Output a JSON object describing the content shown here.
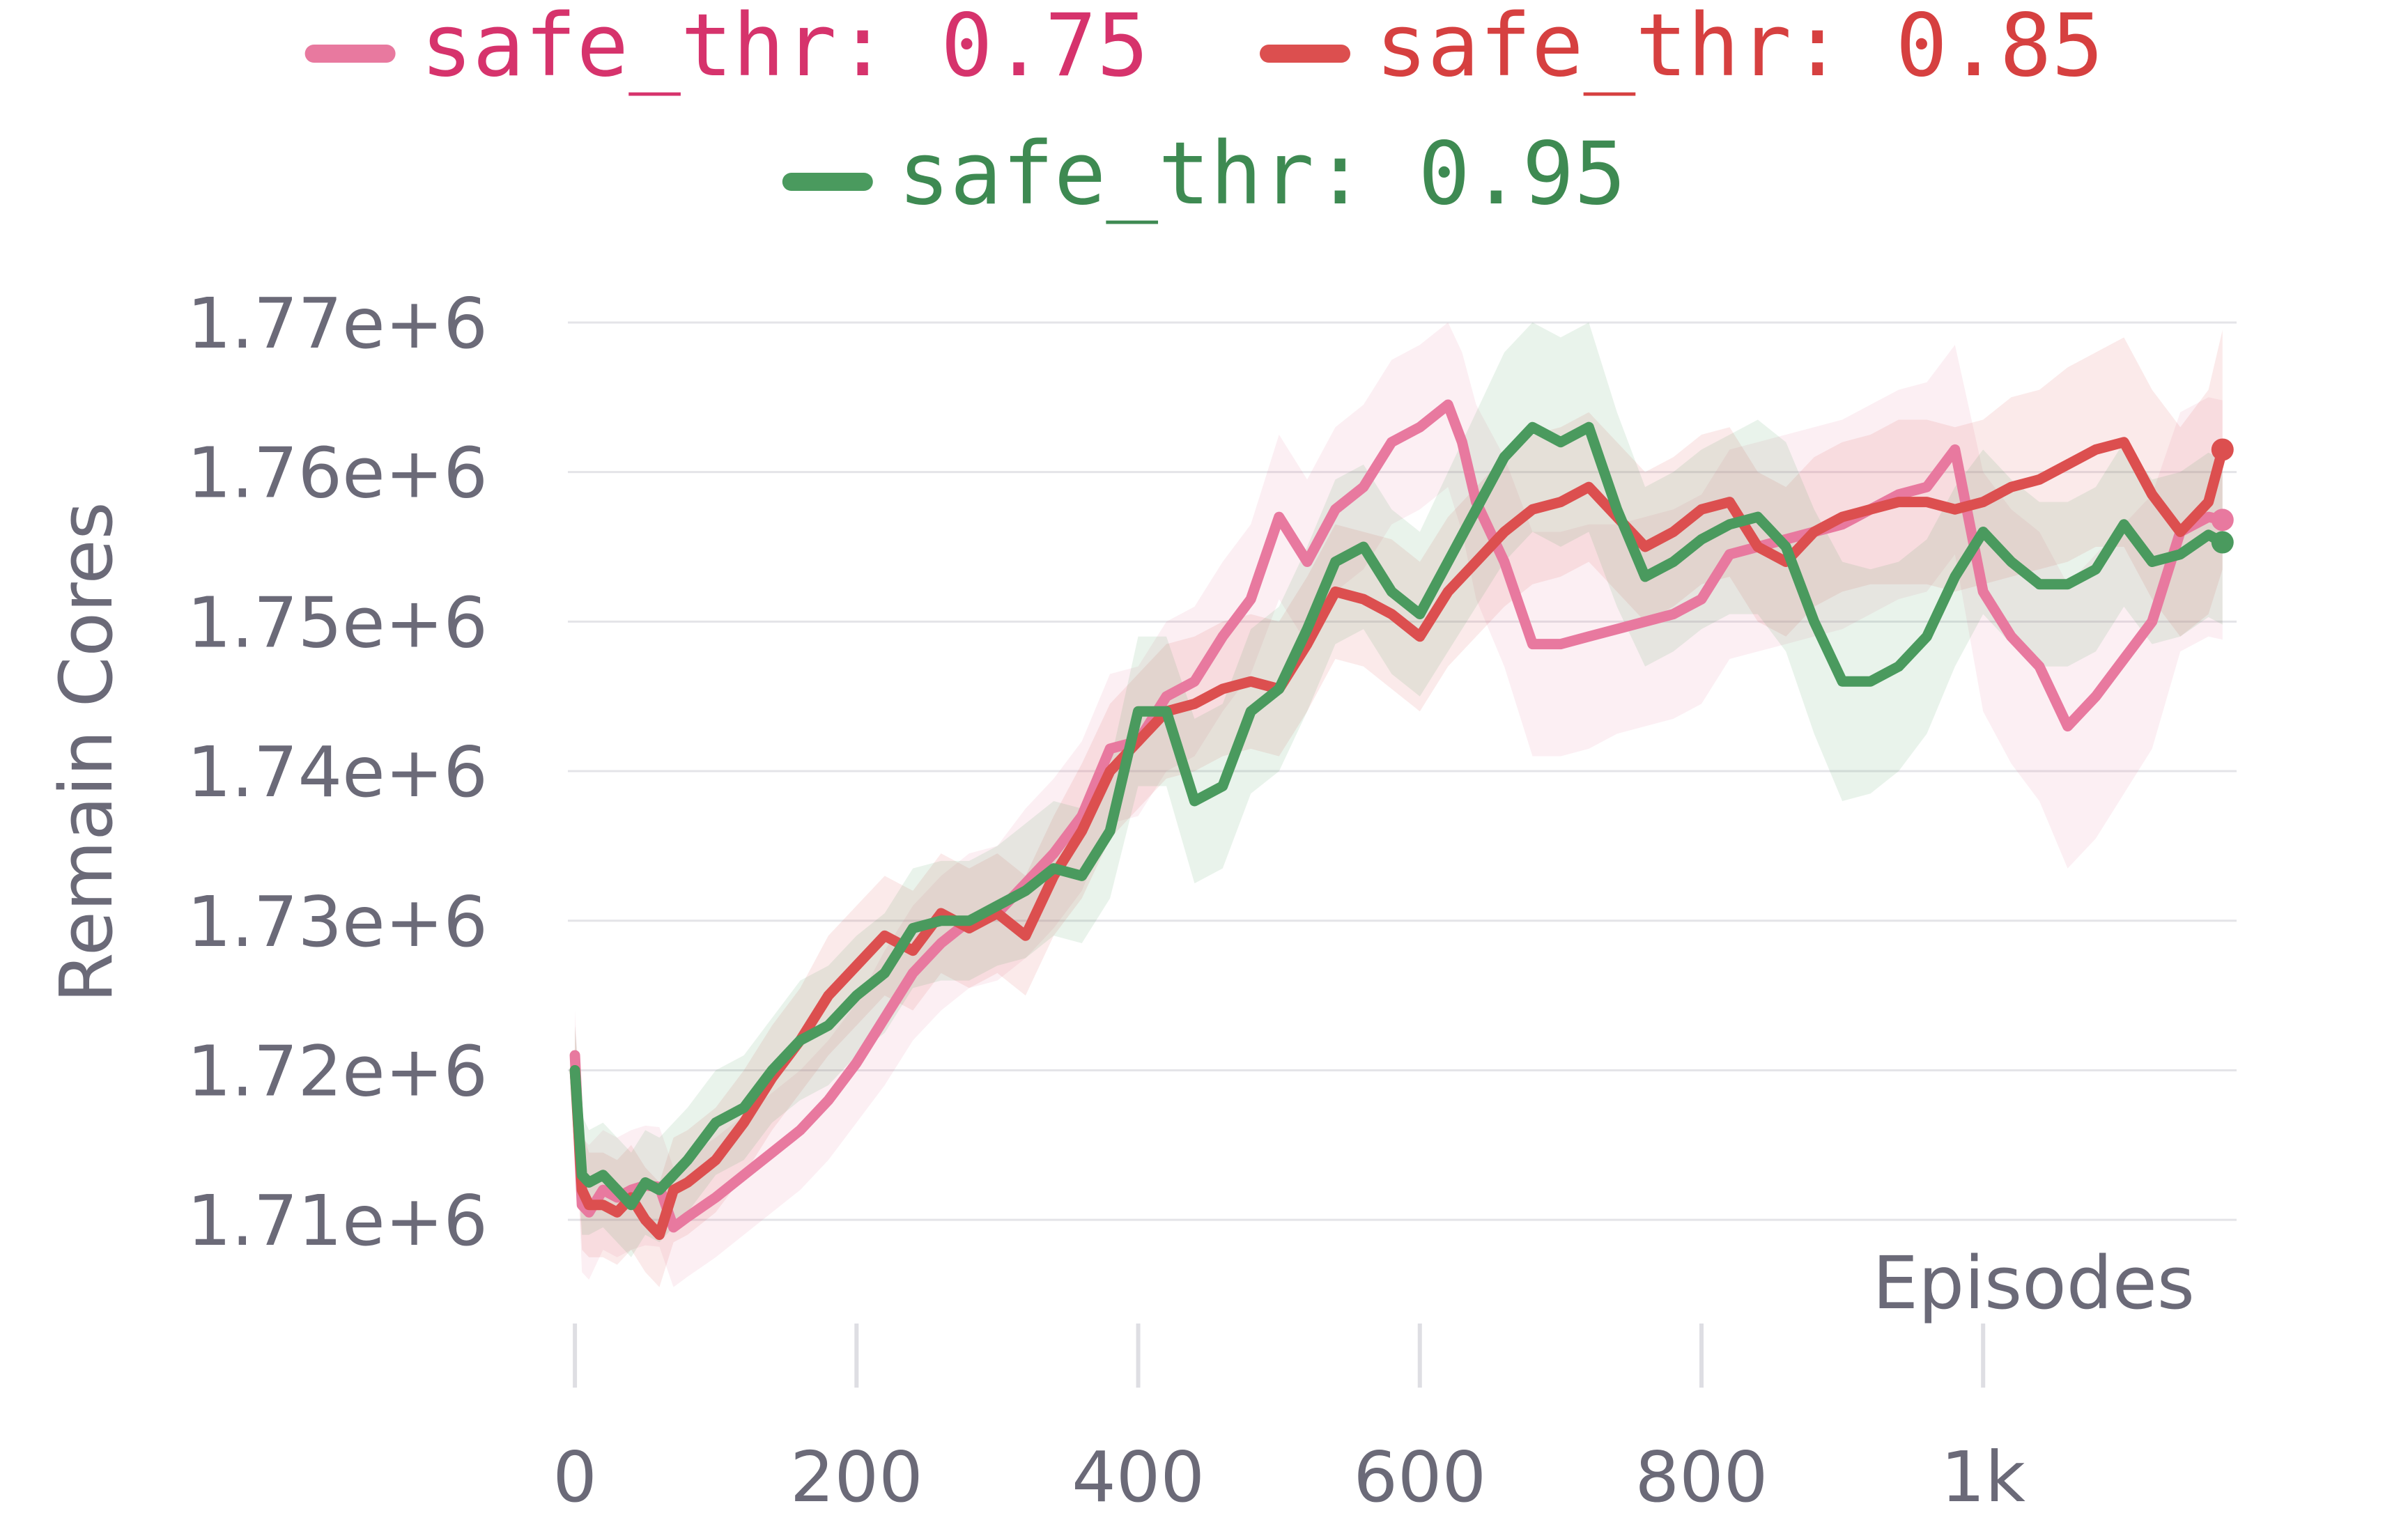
{
  "chart_data": {
    "type": "line",
    "xlabel": "Episodes",
    "ylabel": "Remain Cores",
    "xlim": [
      -5,
      1180
    ],
    "ylim": [
      1704000,
      1772000
    ],
    "x_ticks": [
      {
        "value": 0,
        "label": "0"
      },
      {
        "value": 200,
        "label": "200"
      },
      {
        "value": 400,
        "label": "400"
      },
      {
        "value": 600,
        "label": "600"
      },
      {
        "value": 800,
        "label": "800"
      },
      {
        "value": 1000,
        "label": "1k"
      }
    ],
    "y_ticks": [
      {
        "value": 1710000,
        "label": "1.71e+6"
      },
      {
        "value": 1720000,
        "label": "1.72e+6"
      },
      {
        "value": 1730000,
        "label": "1.73e+6"
      },
      {
        "value": 1740000,
        "label": "1.74e+6"
      },
      {
        "value": 1750000,
        "label": "1.75e+6"
      },
      {
        "value": 1760000,
        "label": "1.76e+6"
      },
      {
        "value": 1770000,
        "label": "1.77e+6"
      }
    ],
    "grid": true,
    "legend_position": "top",
    "series": [
      {
        "name": "safe_thr: 0.75",
        "color": "#e8799f",
        "label_color": "#d6336c",
        "x": [
          0,
          5,
          10,
          20,
          30,
          40,
          50,
          60,
          70,
          80,
          100,
          120,
          140,
          160,
          180,
          200,
          220,
          240,
          260,
          280,
          300,
          320,
          340,
          360,
          380,
          400,
          420,
          440,
          460,
          480,
          500,
          520,
          540,
          560,
          580,
          600,
          620,
          630,
          640,
          660,
          680,
          700,
          720,
          740,
          760,
          780,
          800,
          820,
          840,
          860,
          880,
          900,
          920,
          940,
          960,
          980,
          1000,
          1020,
          1040,
          1060,
          1080,
          1100,
          1120,
          1140,
          1160,
          1170
        ],
        "y": [
          1721000,
          1711000,
          1710500,
          1712000,
          1711500,
          1712000,
          1712300,
          1712200,
          1709500,
          1710200,
          1711500,
          1713000,
          1714500,
          1716000,
          1718000,
          1720500,
          1723500,
          1726500,
          1728500,
          1730000,
          1730500,
          1732500,
          1734500,
          1737000,
          1741500,
          1742000,
          1745000,
          1746000,
          1749000,
          1751500,
          1757000,
          1754000,
          1757500,
          1759000,
          1762000,
          1763000,
          1764500,
          1762000,
          1758000,
          1754000,
          1748500,
          1748500,
          1749000,
          1749500,
          1750000,
          1750500,
          1751500,
          1754500,
          1755000,
          1755500,
          1756000,
          1756500,
          1757500,
          1758500,
          1759000,
          1761500,
          1752000,
          1749000,
          1747000,
          1743000,
          1745000,
          1747500,
          1750000,
          1756000,
          1757000,
          1756800
        ],
        "band": [
          3000,
          4500,
          4500,
          4000,
          4000,
          4000,
          4000,
          4000,
          4000,
          4000,
          4000,
          4000,
          4000,
          4000,
          4000,
          4000,
          4500,
          4500,
          4500,
          4500,
          4500,
          5000,
          5000,
          5000,
          5000,
          5000,
          5000,
          5000,
          5000,
          5000,
          5500,
          5500,
          5500,
          5500,
          5500,
          5500,
          5500,
          6000,
          6500,
          7000,
          7500,
          7500,
          7500,
          7000,
          7000,
          7000,
          7000,
          7000,
          7000,
          7000,
          7000,
          7000,
          7000,
          7000,
          7000,
          7000,
          8000,
          8500,
          9000,
          9500,
          9500,
          9000,
          8500,
          8000,
          8000,
          8000
        ]
      },
      {
        "name": "safe_thr: 0.85",
        "color": "#dc4f4f",
        "label_color": "#d64040",
        "x": [
          0,
          5,
          10,
          20,
          30,
          40,
          50,
          60,
          70,
          80,
          100,
          120,
          140,
          160,
          180,
          200,
          220,
          240,
          260,
          280,
          300,
          320,
          340,
          360,
          380,
          400,
          420,
          440,
          460,
          480,
          500,
          520,
          540,
          560,
          580,
          600,
          620,
          640,
          660,
          680,
          700,
          720,
          740,
          760,
          780,
          800,
          820,
          840,
          860,
          880,
          900,
          920,
          940,
          960,
          980,
          1000,
          1020,
          1040,
          1060,
          1080,
          1100,
          1120,
          1140,
          1160,
          1170
        ],
        "y": [
          1720000,
          1712000,
          1711000,
          1711000,
          1710500,
          1711500,
          1710000,
          1709000,
          1712000,
          1712500,
          1714000,
          1716500,
          1719500,
          1722000,
          1725000,
          1727000,
          1729000,
          1728000,
          1730500,
          1729500,
          1730500,
          1729000,
          1733000,
          1736000,
          1740000,
          1742000,
          1744000,
          1744500,
          1745500,
          1746000,
          1745500,
          1748500,
          1752000,
          1751500,
          1750500,
          1749000,
          1752000,
          1754000,
          1756000,
          1757500,
          1758000,
          1759000,
          1757000,
          1755000,
          1756000,
          1757500,
          1758000,
          1755000,
          1754000,
          1756000,
          1757000,
          1757500,
          1758000,
          1758000,
          1757500,
          1758000,
          1759000,
          1759500,
          1760500,
          1761500,
          1762000,
          1758500,
          1756000,
          1758000,
          1761500
        ],
        "band": [
          3000,
          4000,
          3500,
          3500,
          3500,
          3500,
          3500,
          3500,
          3500,
          3500,
          3500,
          3500,
          3500,
          3500,
          4000,
          4000,
          4000,
          4000,
          4000,
          4000,
          4000,
          4000,
          4000,
          4500,
          4500,
          4500,
          4500,
          4500,
          4500,
          4500,
          4500,
          4500,
          4500,
          4500,
          5000,
          5000,
          5000,
          5000,
          5000,
          5000,
          5000,
          5000,
          5000,
          5000,
          5000,
          5000,
          5000,
          5000,
          5000,
          5000,
          5000,
          5000,
          5500,
          5500,
          5500,
          5500,
          6000,
          6000,
          6500,
          6500,
          7000,
          7000,
          7000,
          7500,
          8000
        ]
      },
      {
        "name": "safe_thr: 0.95",
        "color": "#4a9a5e",
        "label_color": "#3e8a52",
        "x": [
          0,
          5,
          10,
          20,
          30,
          40,
          50,
          60,
          70,
          80,
          100,
          120,
          140,
          160,
          180,
          200,
          220,
          240,
          260,
          280,
          300,
          320,
          340,
          360,
          380,
          400,
          420,
          440,
          460,
          480,
          500,
          520,
          540,
          560,
          580,
          600,
          620,
          640,
          660,
          680,
          700,
          720,
          740,
          760,
          780,
          800,
          820,
          840,
          860,
          880,
          900,
          920,
          940,
          960,
          980,
          1000,
          1020,
          1040,
          1060,
          1080,
          1100,
          1120,
          1140,
          1160,
          1170
        ],
        "y": [
          1720000,
          1713000,
          1712500,
          1713000,
          1712000,
          1711000,
          1712500,
          1712000,
          1713000,
          1714000,
          1716500,
          1717500,
          1720000,
          1722000,
          1723000,
          1725000,
          1726500,
          1729500,
          1730000,
          1730000,
          1731000,
          1732000,
          1733500,
          1733000,
          1736000,
          1744000,
          1744000,
          1738000,
          1739000,
          1744000,
          1745500,
          1749500,
          1754000,
          1755000,
          1752000,
          1750500,
          1754000,
          1757500,
          1761000,
          1763000,
          1762000,
          1763000,
          1757500,
          1753000,
          1754000,
          1755500,
          1756500,
          1757000,
          1755000,
          1750000,
          1746000,
          1746000,
          1747000,
          1749000,
          1753000,
          1756000,
          1754000,
          1752500,
          1752500,
          1753500,
          1756500,
          1754000,
          1754500,
          1755800,
          1755300
        ],
        "band": [
          3000,
          4000,
          3500,
          3500,
          3500,
          3500,
          3500,
          3500,
          3500,
          3500,
          3500,
          3500,
          3500,
          4000,
          4000,
          4000,
          4000,
          4000,
          4000,
          4000,
          4000,
          4500,
          4500,
          4500,
          4500,
          5000,
          5000,
          5500,
          5500,
          5500,
          5500,
          5500,
          5500,
          5500,
          5500,
          5500,
          6000,
          6500,
          7000,
          7000,
          7000,
          7000,
          6500,
          6000,
          6000,
          6000,
          6000,
          6500,
          7000,
          7500,
          8000,
          7500,
          7000,
          6500,
          6000,
          5500,
          5500,
          5500,
          5500,
          5500,
          5500,
          5500,
          5500,
          5500,
          5500
        ]
      }
    ]
  }
}
